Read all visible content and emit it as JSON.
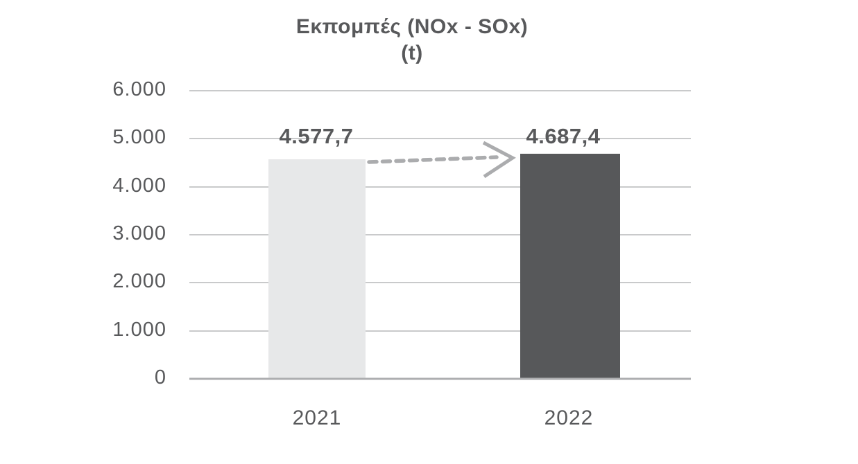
{
  "chart_data": {
    "type": "bar",
    "title": "Εκπομπές (NOx - SOx)",
    "subtitle": "(t)",
    "unit": "t",
    "categories": [
      "2021",
      "2022"
    ],
    "values": [
      4577.7,
      4687.4
    ],
    "value_labels": [
      "4.577,7",
      "4.687,4"
    ],
    "yticks": [
      "6.000",
      "5.000",
      "4.000",
      "3.000",
      "2.000",
      "1.000",
      "0"
    ],
    "ylim": [
      0,
      6000
    ],
    "ytick_interval": 1000,
    "grid": true,
    "legend": false,
    "annotations": [
      {
        "type": "dashed-arrow",
        "from": "2021",
        "to": "2022"
      }
    ]
  },
  "colors": {
    "background": "#ffffff",
    "text": "#58595b",
    "bars": [
      "#e7e8e9",
      "#57585a"
    ],
    "gridline": "#c9cacb",
    "axis_line": "#adaeb0",
    "arrow": "#abacae"
  }
}
